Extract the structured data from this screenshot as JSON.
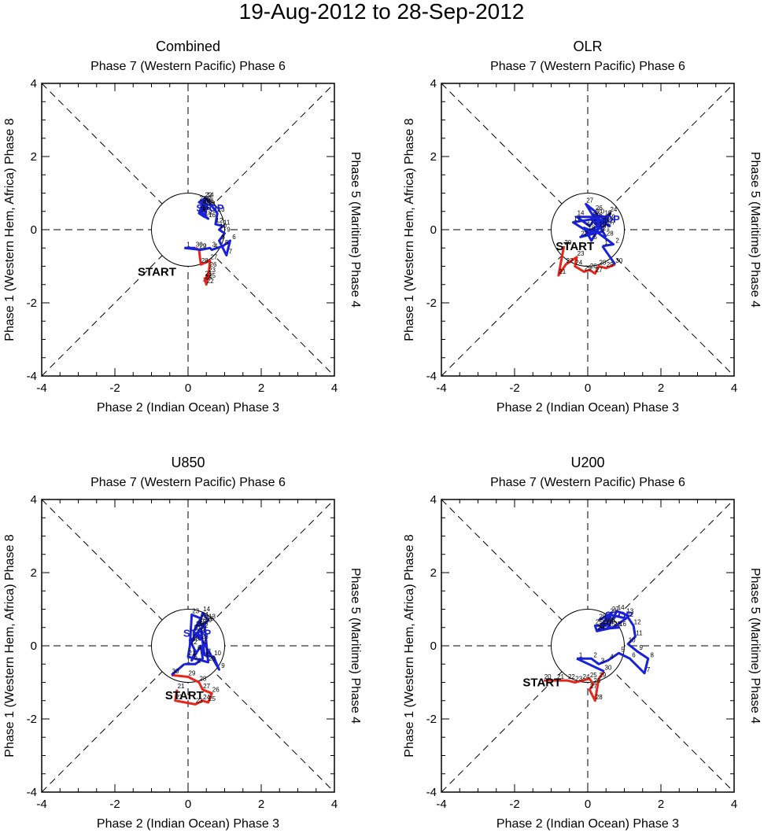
{
  "figure": {
    "title": "19-Aug-2012 to 28-Sep-2012",
    "top_label": "Phase 7 (Western Pacific) Phase 6",
    "bottom_label": "Phase 2 (Indian Ocean) Phase 3",
    "left_label": "Phase 1 (Western Hem, Africa) Phase 8",
    "right_label": "Phase 5 (Maritime) Phase 4",
    "start_label": "START",
    "stop_label": "STOP",
    "colors": {
      "august": "#e8251b",
      "september": "#1a22d8",
      "axes": "#000000"
    }
  },
  "chart_data": [
    {
      "type": "line",
      "title": "Combined",
      "xlim": [
        -4,
        4
      ],
      "ylim": [
        -4,
        4
      ],
      "xticks": [
        -4,
        -2,
        0,
        2,
        4
      ],
      "yticks": [
        -4,
        -2,
        0,
        2,
        4
      ],
      "circle_radius": 1,
      "series": [
        {
          "name": "August",
          "color": "#e8251b",
          "points": [
            [
              0.45,
              -1.3
            ],
            [
              0.5,
              -1.5
            ],
            [
              0.55,
              -1.2
            ],
            [
              0.45,
              -1.4
            ],
            [
              0.55,
              -1.35
            ],
            [
              0.58,
              -1.05
            ],
            [
              0.6,
              -0.85
            ],
            [
              0.35,
              -0.95
            ],
            [
              0.3,
              -0.55
            ],
            [
              0.2,
              -0.5
            ]
          ],
          "labels": [
            "21",
            "22",
            "23",
            "24",
            "25",
            "26",
            "27",
            "28",
            "29",
            "30"
          ]
        },
        {
          "name": "September",
          "color": "#1a22d8",
          "points": [
            [
              -0.1,
              -0.5
            ],
            [
              0.35,
              -0.55
            ],
            [
              0.6,
              -0.5
            ],
            [
              0.65,
              -0.55
            ],
            [
              0.95,
              -0.45
            ],
            [
              1.15,
              -0.3
            ],
            [
              1.05,
              -0.7
            ],
            [
              0.85,
              -0.3
            ],
            [
              1.0,
              -0.1
            ],
            [
              0.85,
              0.0
            ],
            [
              0.95,
              0.1
            ],
            [
              0.75,
              0.15
            ],
            [
              0.8,
              0.45
            ],
            [
              0.5,
              0.85
            ],
            [
              0.35,
              0.5
            ],
            [
              0.55,
              0.3
            ],
            [
              0.3,
              0.45
            ],
            [
              0.45,
              0.35
            ],
            [
              0.5,
              0.65
            ],
            [
              0.4,
              0.7
            ],
            [
              0.3,
              0.75
            ],
            [
              0.45,
              0.85
            ],
            [
              0.3,
              0.45
            ],
            [
              0.55,
              0.6
            ],
            [
              0.4,
              0.5
            ],
            [
              0.5,
              0.7
            ],
            [
              0.45,
              0.75
            ],
            [
              0.35,
              0.6
            ]
          ],
          "labels": [
            "1",
            "2",
            "3",
            "4",
            "5",
            "6",
            "7",
            "8",
            "9",
            "10",
            "11",
            "12",
            "13",
            "14",
            "15",
            "16",
            "17",
            "18",
            "19",
            "20",
            "21",
            "22",
            "23",
            "24",
            "25",
            "26",
            "27",
            "28"
          ]
        }
      ],
      "start": [
        -0.85,
        -1.15
      ],
      "stop": [
        0.6,
        0.6
      ]
    },
    {
      "type": "line",
      "title": "OLR",
      "xlim": [
        -4,
        4
      ],
      "ylim": [
        -4,
        4
      ],
      "xticks": [
        -4,
        -2,
        0,
        2,
        4
      ],
      "yticks": [
        -4,
        -2,
        0,
        2,
        4
      ],
      "circle_radius": 1,
      "series": [
        {
          "name": "August",
          "color": "#e8251b",
          "points": [
            [
              -0.65,
              -0.45
            ],
            [
              -0.8,
              -1.25
            ],
            [
              -0.6,
              -0.95
            ],
            [
              -0.3,
              -0.75
            ],
            [
              -0.35,
              -1.0
            ],
            [
              -0.1,
              -1.15
            ],
            [
              0.05,
              -1.1
            ],
            [
              0.2,
              -1.2
            ],
            [
              0.3,
              -1.0
            ],
            [
              0.5,
              -1.05
            ],
            [
              0.75,
              -0.95
            ]
          ],
          "labels": [
            "20",
            "21",
            "22",
            "23",
            "24",
            "25",
            "26",
            "27",
            "28",
            "29",
            "30"
          ]
        },
        {
          "name": "September",
          "color": "#1a22d8",
          "points": [
            [
              0.4,
              -0.45
            ],
            [
              0.7,
              -0.4
            ],
            [
              0.3,
              -0.1
            ],
            [
              -0.1,
              0.05
            ],
            [
              0.1,
              -0.3
            ],
            [
              0.4,
              0.2
            ],
            [
              0.6,
              0.1
            ],
            [
              0.15,
              0.4
            ],
            [
              0.5,
              0.35
            ],
            [
              0.3,
              0.05
            ],
            [
              0.1,
              0.3
            ],
            [
              0.5,
              0.15
            ],
            [
              0.45,
              0.35
            ],
            [
              -0.3,
              0.35
            ],
            [
              0.05,
              0.1
            ],
            [
              0.2,
              0.3
            ],
            [
              -0.4,
              0.2
            ],
            [
              0.0,
              -0.05
            ],
            [
              0.55,
              0.25
            ],
            [
              0.25,
              0.4
            ],
            [
              0.4,
              -0.05
            ],
            [
              -0.2,
              -0.2
            ],
            [
              0.45,
              0.1
            ],
            [
              0.6,
              0.45
            ],
            [
              0.35,
              0.15
            ],
            [
              0.2,
              0.5
            ],
            [
              -0.05,
              0.7
            ],
            [
              0.5,
              -0.2
            ]
          ],
          "labels": [
            "1",
            "2",
            "3",
            "4",
            "5",
            "6",
            "7",
            "8",
            "9",
            "10",
            "11",
            "12",
            "13",
            "14",
            "15",
            "16",
            "17",
            "18",
            "19",
            "20",
            "21",
            "22",
            "23",
            "24",
            "25",
            "26",
            "27",
            "28"
          ]
        }
      ],
      "start": [
        -0.35,
        -0.45
      ],
      "stop": [
        0.5,
        0.3
      ]
    },
    {
      "type": "line",
      "title": "U850",
      "xlim": [
        -4,
        4
      ],
      "ylim": [
        -4,
        4
      ],
      "xticks": [
        -4,
        -2,
        0,
        2,
        4
      ],
      "yticks": [
        -4,
        -2,
        0,
        2,
        4
      ],
      "circle_radius": 1,
      "series": [
        {
          "name": "August",
          "color": "#e8251b",
          "points": [
            [
              -0.3,
              -1.2
            ],
            [
              -0.35,
              -1.5
            ],
            [
              0.2,
              -1.6
            ],
            [
              0.4,
              -1.5
            ],
            [
              0.55,
              -1.55
            ],
            [
              0.65,
              -1.3
            ],
            [
              0.4,
              -1.2
            ],
            [
              0.3,
              -1.0
            ],
            [
              0.0,
              -0.85
            ],
            [
              -0.45,
              -0.8
            ]
          ],
          "labels": [
            "21",
            "22",
            "23",
            "24",
            "25",
            "26",
            "27",
            "28",
            "29",
            "30"
          ]
        },
        {
          "name": "September",
          "color": "#1a22d8",
          "points": [
            [
              -0.1,
              -0.5
            ],
            [
              0.2,
              -0.5
            ],
            [
              0.4,
              -0.35
            ],
            [
              0.35,
              0.0
            ],
            [
              0.1,
              -0.4
            ],
            [
              0.2,
              -0.15
            ],
            [
              0.05,
              0.15
            ],
            [
              0.3,
              0.3
            ],
            [
              0.85,
              -0.65
            ],
            [
              0.7,
              -0.3
            ],
            [
              0.45,
              -0.25
            ],
            [
              0.35,
              0.45
            ],
            [
              0.55,
              0.7
            ],
            [
              0.4,
              0.9
            ],
            [
              0.3,
              0.55
            ],
            [
              0.5,
              0.65
            ],
            [
              0.2,
              0.3
            ],
            [
              0.1,
              0.1
            ],
            [
              0.45,
              0.6
            ],
            [
              0.55,
              -0.45
            ],
            [
              0.0,
              -0.3
            ],
            [
              0.05,
              0.0
            ],
            [
              0.1,
              0.85
            ],
            [
              0.35,
              0.75
            ],
            [
              0.2,
              0.5
            ],
            [
              0.3,
              0.6
            ],
            [
              0.15,
              0.4
            ],
            [
              0.35,
              0.15
            ]
          ],
          "labels": [
            "1",
            "2",
            "3",
            "4",
            "5",
            "6",
            "7",
            "8",
            "9",
            "10",
            "11",
            "12",
            "13",
            "14",
            "15",
            "16",
            "17",
            "18",
            "19",
            "20",
            "21",
            "22",
            "23",
            "24",
            "25",
            "26",
            "27",
            "28"
          ]
        }
      ],
      "start": [
        -0.1,
        -1.35
      ],
      "stop": [
        0.25,
        0.35
      ]
    },
    {
      "type": "line",
      "title": "U200",
      "xlim": [
        -4,
        4
      ],
      "ylim": [
        -4,
        4
      ],
      "xticks": [
        -4,
        -2,
        0,
        2,
        4
      ],
      "yticks": [
        -4,
        -2,
        0,
        2,
        4
      ],
      "circle_radius": 1,
      "series": [
        {
          "name": "August",
          "color": "#e8251b",
          "points": [
            [
              -1.2,
              -0.95
            ],
            [
              -0.85,
              -0.95
            ],
            [
              -0.55,
              -0.95
            ],
            [
              -0.35,
              -1.0
            ],
            [
              -0.15,
              -0.95
            ],
            [
              0.05,
              -0.9
            ],
            [
              0.15,
              -1.05
            ],
            [
              0.05,
              -1.2
            ],
            [
              0.2,
              -1.5
            ],
            [
              0.3,
              -0.9
            ],
            [
              0.45,
              -0.7
            ]
          ],
          "labels": [
            "20",
            "21",
            "22",
            "23",
            "24",
            "25",
            "26",
            "27",
            "28",
            "29",
            "30"
          ]
        },
        {
          "name": "September",
          "color": "#1a22d8",
          "points": [
            [
              -0.3,
              -0.35
            ],
            [
              0.1,
              -0.35
            ],
            [
              0.3,
              -0.5
            ],
            [
              0.55,
              -0.4
            ],
            [
              0.85,
              -0.2
            ],
            [
              1.15,
              -0.35
            ],
            [
              1.55,
              -0.75
            ],
            [
              1.65,
              -0.35
            ],
            [
              1.35,
              -0.15
            ],
            [
              1.1,
              0.05
            ],
            [
              1.3,
              0.25
            ],
            [
              1.25,
              0.55
            ],
            [
              1.05,
              0.85
            ],
            [
              0.8,
              0.95
            ],
            [
              0.55,
              0.5
            ],
            [
              0.85,
              0.5
            ],
            [
              0.3,
              0.45
            ],
            [
              0.55,
              0.6
            ],
            [
              0.45,
              0.6
            ],
            [
              0.35,
              0.55
            ],
            [
              0.6,
              0.85
            ],
            [
              1.05,
              0.75
            ],
            [
              0.7,
              0.5
            ],
            [
              0.25,
              0.4
            ],
            [
              0.2,
              0.55
            ],
            [
              0.5,
              0.55
            ],
            [
              0.65,
              0.9
            ],
            [
              0.3,
              0.7
            ]
          ],
          "labels": [
            "1",
            "2",
            "3",
            "4",
            "5",
            "6",
            "7",
            "8",
            "9",
            "10",
            "11",
            "12",
            "13",
            "14",
            "15",
            "16",
            "17",
            "18",
            "19",
            "20",
            "21",
            "22",
            "23",
            "24",
            "25",
            "26",
            "27",
            "28"
          ]
        }
      ],
      "start": [
        -1.25,
        -1.0
      ],
      "stop": [
        0.85,
        0.85
      ]
    }
  ]
}
